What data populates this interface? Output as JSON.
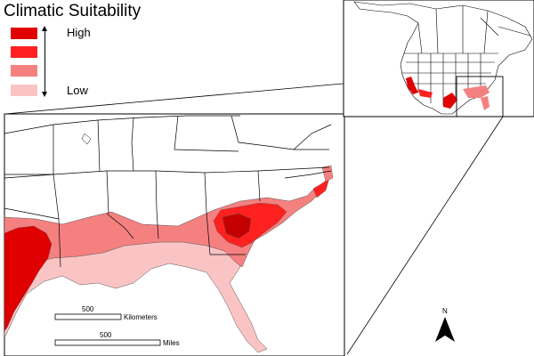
{
  "title": "Climatic Suitability",
  "legend": {
    "high_label": "High",
    "low_label": "Low",
    "classes": [
      "#e00000",
      "#ff2020",
      "#f58080",
      "#fbc4c4"
    ]
  },
  "scalebar": {
    "km_value": "500",
    "km_unit": "Kilometers",
    "mi_value": "500",
    "mi_unit": "Miles"
  },
  "north_label": "N",
  "colors": {
    "high": "#e00000",
    "mid_high": "#ff2020",
    "mid_low": "#f58080",
    "low": "#fbc4c4",
    "border": "#000000"
  }
}
